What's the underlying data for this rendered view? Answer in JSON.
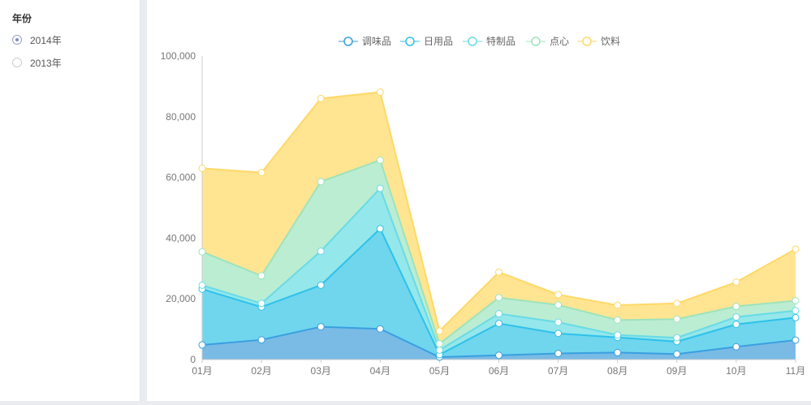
{
  "sidebar": {
    "title": "年份",
    "options": [
      {
        "label": "2014年",
        "checked": true
      },
      {
        "label": "2013年",
        "checked": false
      }
    ]
  },
  "colors": {
    "series": [
      "#3a9fe0",
      "#2ec1ea",
      "#68dbe6",
      "#9de3bc",
      "#ffd866"
    ],
    "fills": [
      "#79bbe5",
      "#6fd6ee",
      "#94e7ea",
      "#bbedd3",
      "#ffe592"
    ]
  },
  "chart_data": {
    "type": "area",
    "stacked": true,
    "categories": [
      "01月",
      "02月",
      "03月",
      "04月",
      "05月",
      "06月",
      "07月",
      "08月",
      "09月",
      "10月",
      "11月"
    ],
    "series": [
      {
        "name": "调味品",
        "values": [
          4800,
          6500,
          10800,
          10100,
          800,
          1400,
          2000,
          2300,
          1800,
          4200,
          6400
        ]
      },
      {
        "name": "日用品",
        "values": [
          18400,
          10800,
          13700,
          33000,
          800,
          10500,
          6600,
          5000,
          4100,
          7400,
          7400
        ]
      },
      {
        "name": "特制品",
        "values": [
          1300,
          1200,
          11200,
          13300,
          1500,
          3200,
          3700,
          800,
          1300,
          2400,
          2300
        ]
      },
      {
        "name": "点心",
        "values": [
          11000,
          9100,
          22900,
          9300,
          2100,
          5300,
          5700,
          4900,
          6100,
          3500,
          3300
        ]
      },
      {
        "name": "饮料",
        "values": [
          27500,
          34000,
          27400,
          22400,
          4200,
          8400,
          3400,
          4900,
          5200,
          8000,
          17000
        ]
      }
    ],
    "ylim": [
      0,
      100000
    ],
    "yticks": [
      "0",
      "20,000",
      "40,000",
      "60,000",
      "80,000",
      "100,000"
    ],
    "legend_position": "top-center",
    "grid": false
  }
}
